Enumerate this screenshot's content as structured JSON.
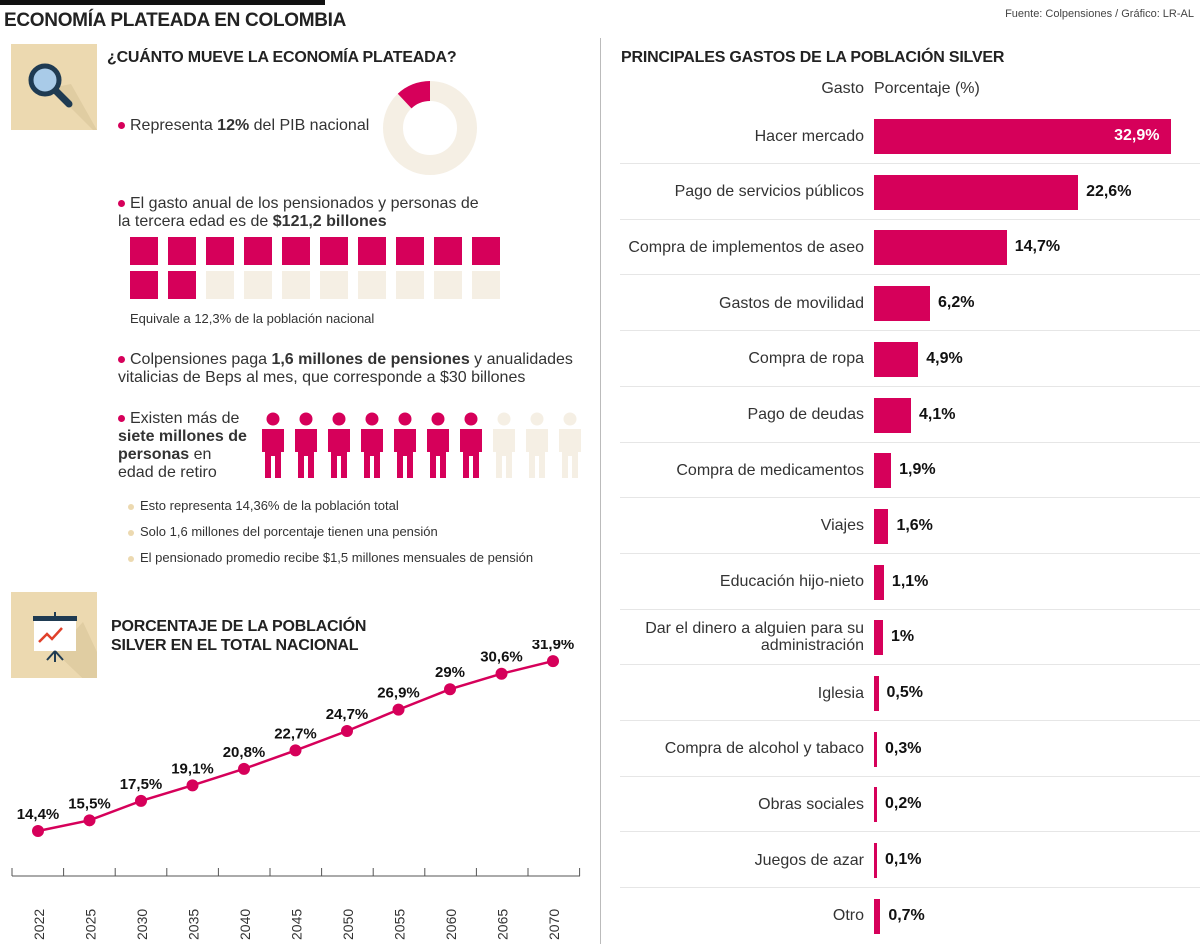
{
  "title": "ECONOMÍA PLATEADA EN COLOMBIA",
  "source": "Fuente: Colpensiones / Gráfico: LR-AL",
  "colors": {
    "accent": "#d6005a",
    "beige": "#f5efe4",
    "icon_bg": "#ecd9b0"
  },
  "section1": {
    "icon": "magnifier-icon",
    "heading": "¿CUÁNTO MUEVE LA ECONOMÍA PLATEADA?",
    "pib": {
      "pre": "Representa ",
      "bold": "12%",
      "post": " del PIB nacional",
      "value": 12
    },
    "gasto": {
      "pre": "El gasto anual de los pensionados y personas de la tercera edad es de ",
      "bold": "$121,2 billones",
      "squares_total": 20,
      "squares_filled": 12,
      "note": "Equivale a 12,3% de la población nacional"
    },
    "colpensiones": {
      "pre": "Colpensiones paga ",
      "bold": "1,6 millones de pensiones",
      "post": " y anualidades vitalicias de Beps al mes, que corresponde a $30 billones"
    },
    "personas": {
      "pre": "Existen más de ",
      "bold": "siete millones de personas",
      "post": " en edad de retiro",
      "people_total": 10,
      "people_filled": 7
    },
    "notes": [
      "Esto representa 14,36% de la población total",
      "Solo 1,6 millones del porcentaje tienen una pensión",
      "El pensionado promedio recibe $1,5 millones mensuales de pensión"
    ]
  },
  "chart_data": [
    {
      "type": "line",
      "title": "PORCENTAJE DE LA POBLACIÓN SILVER EN EL TOTAL NACIONAL",
      "icon": "presentation-chart-icon",
      "categories": [
        "2022",
        "2025",
        "2030",
        "2035",
        "2040",
        "2045",
        "2050",
        "2055",
        "2060",
        "2065",
        "2070"
      ],
      "values": [
        14.4,
        15.5,
        17.5,
        19.1,
        20.8,
        22.7,
        24.7,
        26.9,
        29,
        30.6,
        31.9
      ],
      "labels": [
        "14,4%",
        "15,5%",
        "17,5%",
        "19,1%",
        "20,8%",
        "22,7%",
        "24,7%",
        "26,9%",
        "29%",
        "30,6%",
        "31,9%"
      ]
    },
    {
      "type": "bar",
      "orientation": "horizontal",
      "title": "PRINCIPALES GASTOS DE LA POBLACIÓN SILVER",
      "xlabel": "Porcentaje (%)",
      "ylabel": "Gasto",
      "categories": [
        "Hacer mercado",
        "Pago de servicios públicos",
        "Compra de implementos de aseo",
        "Gastos de movilidad",
        "Compra de ropa",
        "Pago de deudas",
        "Compra de medicamentos",
        "Viajes",
        "Educación hijo-nieto",
        "Dar el dinero a alguien para su administración",
        "Iglesia",
        "Compra de alcohol y tabaco",
        "Obras sociales",
        "Juegos de azar",
        "Otro"
      ],
      "values": [
        32.9,
        22.6,
        14.7,
        6.2,
        4.9,
        4.1,
        1.9,
        1.6,
        1.1,
        1,
        0.5,
        0.3,
        0.2,
        0.1,
        0.7
      ],
      "labels": [
        "32,9%",
        "22,6%",
        "14,7%",
        "6,2%",
        "4,9%",
        "4,1%",
        "1,9%",
        "1,6%",
        "1,1%",
        "1%",
        "0,5%",
        "0,3%",
        "0,2%",
        "0,1%",
        "0,7%"
      ]
    }
  ]
}
